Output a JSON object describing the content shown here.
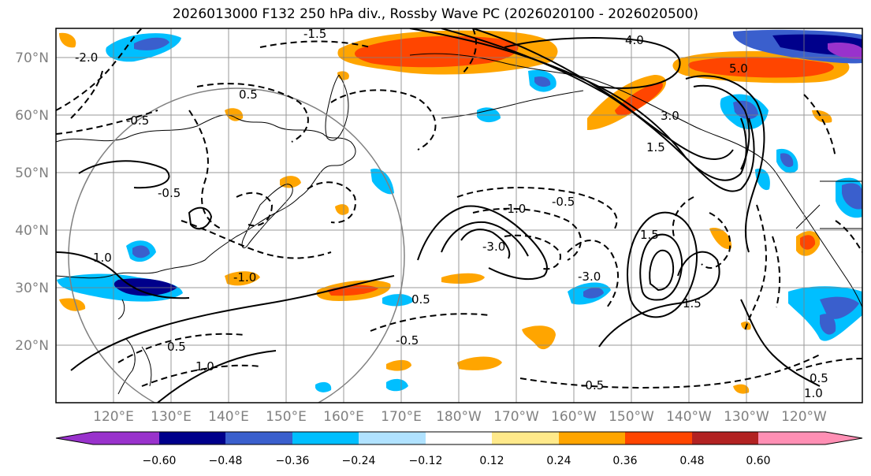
{
  "title": "2026013000 F132 250 hPa div., Rossby Wave PC (2026020100 - 2026020500)",
  "lat_labels": [
    "70°N",
    "60°N",
    "50°N",
    "40°N",
    "30°N",
    "20°N"
  ],
  "lat_values": [
    70,
    60,
    50,
    40,
    30,
    20
  ],
  "lon_labels": [
    "120°E",
    "130°E",
    "140°E",
    "150°E",
    "160°E",
    "170°E",
    "180°W",
    "170°W",
    "160°W",
    "150°W",
    "140°W",
    "130°W",
    "120°W"
  ],
  "lon_values": [
    120,
    130,
    140,
    150,
    160,
    170,
    180,
    190,
    200,
    210,
    220,
    230,
    240
  ],
  "map_extent": {
    "lon_min": 110,
    "lon_max": 250,
    "lat_min": 10,
    "lat_max": 75
  },
  "colorbar": {
    "ticks": [
      "−0.60",
      "−0.48",
      "−0.36",
      "−0.24",
      "−0.12",
      "0.12",
      "0.24",
      "0.36",
      "0.48",
      "0.60"
    ],
    "colors": [
      "#9932cc",
      "#00008b",
      "#3a5fcd",
      "#00bfff",
      "#b0e2ff",
      "#ffffff",
      "#ffe98a",
      "#ffa500",
      "#ff4500",
      "#b22222",
      "#ff8fb4"
    ]
  },
  "contour_labels": [
    "4.0",
    "5.0",
    "3.0",
    "1.5",
    "-0.5",
    "-1.0",
    "-1.5",
    "-2.0",
    "-3.0",
    "1.0",
    "0.5",
    "-0.5",
    "1.5",
    "-3.0",
    "1.0",
    "-0.5",
    "0.5",
    "-0.5",
    "0.5",
    "1.5",
    "1.0",
    "-0.5",
    "-1.0",
    "0.5"
  ],
  "colors": {
    "grid": "#808080",
    "frame": "#000000",
    "circle": "#808080"
  }
}
